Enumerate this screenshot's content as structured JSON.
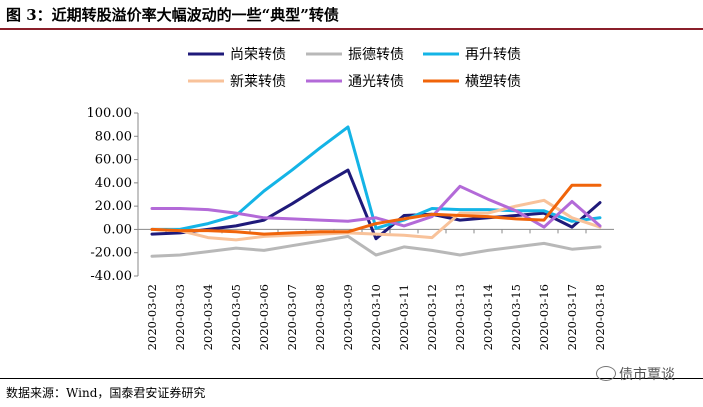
{
  "figure": {
    "title": "图 3：近期转股溢价率大幅波动的一些“典型”转债",
    "source": "数据来源：Wind，国泰君安证券研究",
    "watermark": "债市覃谈"
  },
  "chart_data": {
    "type": "line",
    "x": [
      "2020-03-02",
      "2020-03-03",
      "2020-03-04",
      "2020-03-05",
      "2020-03-06",
      "2020-03-07",
      "2020-03-08",
      "2020-03-09",
      "2020-03-10",
      "2020-03-11",
      "2020-03-12",
      "2020-03-13",
      "2020-03-14",
      "2020-03-15",
      "2020-03-16",
      "2020-03-17",
      "2020-03-18"
    ],
    "ylim": [
      -40,
      100
    ],
    "yticks": [
      "100.00",
      "80.00",
      "60.00",
      "40.00",
      "20.00",
      "0.00",
      "-20.00",
      "-40.00"
    ],
    "ytick_values": [
      100,
      80,
      60,
      40,
      20,
      0,
      -20,
      -40
    ],
    "legend_position": "top",
    "grid": false,
    "series": [
      {
        "name": "尚荣转债",
        "color": "#1f1a7a",
        "values": [
          -4,
          -3,
          0,
          3,
          8,
          22,
          37,
          51,
          -8,
          12,
          13,
          8,
          10,
          12,
          14,
          2,
          23
        ]
      },
      {
        "name": "振德转债",
        "color": "#b8b8b8",
        "values": [
          -23,
          -22,
          -19,
          -16,
          -18,
          -14,
          -10,
          -6,
          -22,
          -15,
          -18,
          -22,
          -18,
          -15,
          -12,
          -17,
          -15
        ]
      },
      {
        "name": "再升转债",
        "color": "#14b4e6",
        "values": [
          0,
          0,
          5,
          12,
          33,
          51,
          70,
          88,
          1,
          8,
          18,
          17,
          17,
          16,
          16,
          7,
          10
        ]
      },
      {
        "name": "新莱转债",
        "color": "#f8c29a",
        "values": [
          0,
          -1,
          -7,
          -9,
          -6,
          -5,
          -4,
          -3,
          -4,
          -5,
          -7,
          14,
          14,
          20,
          25,
          10,
          2
        ]
      },
      {
        "name": "通光转债",
        "color": "#b36ad8",
        "values": [
          18,
          18,
          17,
          14,
          10,
          9,
          8,
          7,
          10,
          3,
          11,
          37,
          26,
          16,
          2,
          24,
          3
        ]
      },
      {
        "name": "横塑转债",
        "color": "#f0640a",
        "values": [
          0,
          -1,
          -1,
          -2,
          -4,
          -3,
          -2,
          -2,
          5,
          9,
          13,
          12,
          11,
          9,
          8,
          38,
          38
        ]
      }
    ]
  }
}
